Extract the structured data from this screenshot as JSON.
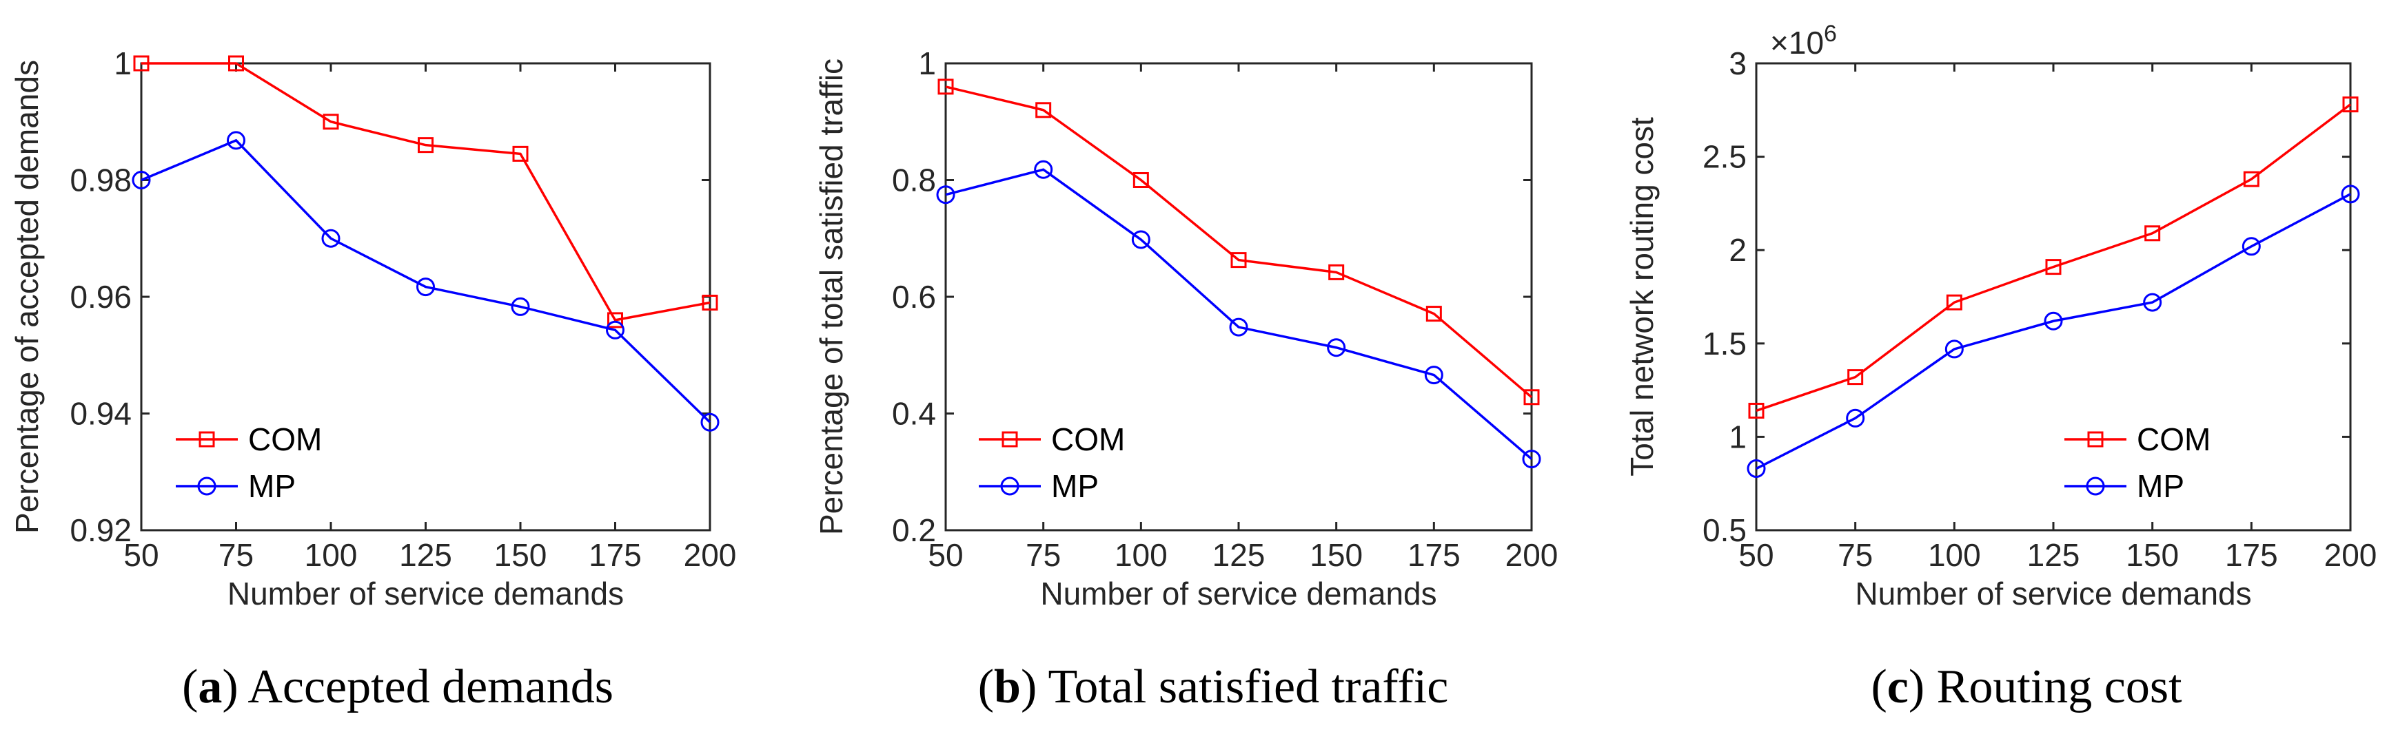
{
  "colors": {
    "com": "#ff0000",
    "mp": "#0000ff",
    "axis": "#262626"
  },
  "chart_data": [
    {
      "type": "line",
      "x": [
        50,
        75,
        100,
        125,
        150,
        175,
        200
      ],
      "xlim": [
        50,
        200
      ],
      "ylim": [
        0.92,
        1.0
      ],
      "xticks": [
        "50",
        "75",
        "100",
        "125",
        "150",
        "175",
        "200"
      ],
      "yticks": [
        0.92,
        0.94,
        0.96,
        0.98,
        1
      ],
      "ytick_labels": [
        "0.92",
        "0.94",
        "0.96",
        "0.98",
        "1"
      ],
      "xlabel": "Number of service demands",
      "ylabel": "Percentage of accepted demands",
      "exponent": "",
      "legend_placement": "bottom-left",
      "series": [
        {
          "name": "COM",
          "marker": "square",
          "values": [
            1.0,
            1.0,
            0.99,
            0.986,
            0.9845,
            0.956,
            0.959
          ]
        },
        {
          "name": "MP",
          "marker": "circle",
          "values": [
            0.98,
            0.9868,
            0.97,
            0.9617,
            0.9583,
            0.9543,
            0.9385
          ]
        }
      ],
      "caption": {
        "letter": "a",
        "text": "Accepted demands"
      }
    },
    {
      "type": "line",
      "x": [
        50,
        75,
        100,
        125,
        150,
        175,
        200
      ],
      "xlim": [
        50,
        200
      ],
      "ylim": [
        0.2,
        1.0
      ],
      "xticks": [
        "50",
        "75",
        "100",
        "125",
        "150",
        "175",
        "200"
      ],
      "yticks": [
        0.2,
        0.4,
        0.6,
        0.8,
        1
      ],
      "ytick_labels": [
        "0.2",
        "0.4",
        "0.6",
        "0.8",
        "1"
      ],
      "xlabel": "Number of service demands",
      "ylabel": "Percentage of total satisfied traffic",
      "exponent": "",
      "legend_placement": "bottom-left",
      "series": [
        {
          "name": "COM",
          "marker": "square",
          "values": [
            0.96,
            0.92,
            0.8,
            0.663,
            0.642,
            0.571,
            0.428
          ]
        },
        {
          "name": "MP",
          "marker": "circle",
          "values": [
            0.775,
            0.818,
            0.698,
            0.548,
            0.513,
            0.466,
            0.322
          ]
        }
      ],
      "caption": {
        "letter": "b",
        "text": "Total satisfied traffic"
      }
    },
    {
      "type": "line",
      "x": [
        50,
        75,
        100,
        125,
        150,
        175,
        200
      ],
      "xlim": [
        50,
        200
      ],
      "ylim": [
        0.5,
        3.0
      ],
      "xticks": [
        "50",
        "75",
        "100",
        "125",
        "150",
        "175",
        "200"
      ],
      "yticks": [
        0.5,
        1,
        1.5,
        2,
        2.5,
        3
      ],
      "ytick_labels": [
        "0.5",
        "1",
        "1.5",
        "2",
        "2.5",
        "3"
      ],
      "xlabel": "Number of service demands",
      "ylabel": "Total network routing cost",
      "exponent": "×10",
      "exponent_power": "6",
      "legend_placement": "bottom-right",
      "series": [
        {
          "name": "COM",
          "marker": "square",
          "values": [
            1.14,
            1.32,
            1.72,
            1.91,
            2.09,
            2.38,
            2.78
          ]
        },
        {
          "name": "MP",
          "marker": "circle",
          "values": [
            0.83,
            1.1,
            1.47,
            1.62,
            1.72,
            2.02,
            2.3
          ]
        }
      ],
      "caption": {
        "letter": "c",
        "text": "Routing cost"
      }
    }
  ]
}
